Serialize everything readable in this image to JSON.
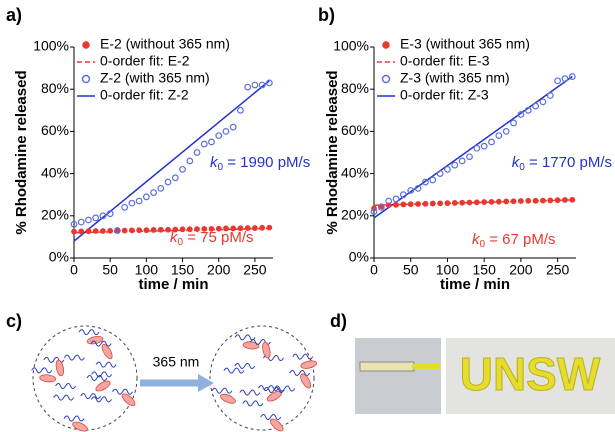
{
  "panel_labels": {
    "a": "a)",
    "b": "b)",
    "c": "c)",
    "d": "d)"
  },
  "chart_data": [
    {
      "type": "scatter",
      "y_label": "% Rhodamine released",
      "x_label": "time / min",
      "xlim": [
        0,
        275
      ],
      "xticks": [
        0,
        50,
        100,
        150,
        200,
        250
      ],
      "ylim": [
        0,
        100
      ],
      "yticks": [
        {
          "value": 0,
          "label": "0%"
        },
        {
          "value": 20,
          "label": "20%"
        },
        {
          "value": 40,
          "label": "40%"
        },
        {
          "value": 60,
          "label": "60%"
        },
        {
          "value": 80,
          "label": "80%"
        },
        {
          "value": 100,
          "label": "100%"
        }
      ],
      "x": [
        0,
        10,
        20,
        30,
        40,
        50,
        60,
        70,
        80,
        90,
        100,
        110,
        120,
        130,
        140,
        150,
        160,
        170,
        180,
        190,
        200,
        210,
        220,
        230,
        240,
        250,
        260,
        270
      ],
      "series": [
        {
          "name": "E-2 (without 365 nm)",
          "color": "#e8382f",
          "marker": "filled",
          "values": [
            12.5,
            12.6,
            12.7,
            12.8,
            12.8,
            12.9,
            13,
            13,
            13.1,
            13.2,
            13.2,
            13.3,
            13.4,
            13.4,
            13.5,
            13.6,
            13.6,
            13.7,
            13.8,
            13.8,
            13.9,
            14,
            14,
            14.1,
            14.2,
            14.2,
            14.3,
            14.4
          ]
        },
        {
          "name": "Z-2 (with 365 nm)",
          "color": "#5b6fe0",
          "marker": "open",
          "values": [
            16,
            17,
            18,
            19,
            20,
            21,
            13,
            24,
            26,
            27,
            29,
            31,
            33,
            36,
            38,
            42,
            46,
            50,
            54,
            55,
            58,
            60,
            62,
            70,
            81,
            82,
            82,
            83
          ]
        }
      ],
      "fit_lines": [
        {
          "name": "0-order fit: E-2",
          "color": "#e8382f",
          "dashed": true,
          "x": [
            0,
            270
          ],
          "values": [
            12,
            14
          ]
        },
        {
          "name": "0-order fit: Z-2",
          "color": "#2233cc",
          "dashed": false,
          "x": [
            0,
            270
          ],
          "values": [
            8,
            84
          ]
        }
      ],
      "annotations": [
        {
          "symbol": "k",
          "subscript": "0",
          "text": " = 1990 pM/s",
          "color": "#2233cc"
        },
        {
          "symbol": "k",
          "subscript": "0",
          "text": " = 75 pM/s",
          "color": "#e8382f"
        }
      ]
    },
    {
      "type": "scatter",
      "y_label": "% Rhodamine released",
      "x_label": "time / min",
      "xlim": [
        0,
        275
      ],
      "xticks": [
        0,
        50,
        100,
        150,
        200,
        250
      ],
      "ylim": [
        0,
        100
      ],
      "yticks": [
        {
          "value": 0,
          "label": "0%"
        },
        {
          "value": 20,
          "label": "20%"
        },
        {
          "value": 40,
          "label": "40%"
        },
        {
          "value": 60,
          "label": "60%"
        },
        {
          "value": 80,
          "label": "80%"
        },
        {
          "value": 100,
          "label": "100%"
        }
      ],
      "x": [
        0,
        10,
        20,
        30,
        40,
        50,
        60,
        70,
        80,
        90,
        100,
        110,
        120,
        130,
        140,
        150,
        160,
        170,
        180,
        190,
        200,
        210,
        220,
        230,
        240,
        250,
        260,
        270
      ],
      "series": [
        {
          "name": "E-3 (without 365 nm)",
          "color": "#e8382f",
          "marker": "filled",
          "values": [
            23.5,
            24.5,
            25,
            25.2,
            25.4,
            25.5,
            25.6,
            25.7,
            25.8,
            25.9,
            26,
            26.1,
            26.2,
            26.3,
            26.4,
            26.5,
            26.6,
            26.7,
            26.8,
            26.9,
            27,
            27.1,
            27.1,
            27.2,
            27.3,
            27.4,
            27.5,
            27.6
          ]
        },
        {
          "name": "Z-3 (with 365 nm)",
          "color": "#5b6fe0",
          "marker": "open",
          "values": [
            22,
            24,
            27,
            28,
            30,
            32,
            33,
            36,
            37,
            40,
            42,
            44,
            46,
            48,
            52,
            53,
            55,
            58,
            60,
            64,
            68,
            70,
            72,
            74,
            77,
            84,
            85,
            86
          ]
        }
      ],
      "fit_lines": [
        {
          "name": "0-order fit: E-3",
          "color": "#e8382f",
          "dashed": true,
          "x": [
            0,
            270
          ],
          "values": [
            25,
            27.5
          ]
        },
        {
          "name": "0-order fit: Z-3",
          "color": "#2233cc",
          "dashed": false,
          "x": [
            0,
            270
          ],
          "values": [
            19,
            86
          ]
        }
      ],
      "annotations": [
        {
          "symbol": "k",
          "subscript": "0",
          "text": " = 1770 pM/s",
          "color": "#2233cc"
        },
        {
          "symbol": "k",
          "subscript": "0",
          "text": " = 67 pM/s",
          "color": "#e8382f"
        }
      ]
    }
  ],
  "arrow_label": "365 nm",
  "photo_text": "UNSW"
}
